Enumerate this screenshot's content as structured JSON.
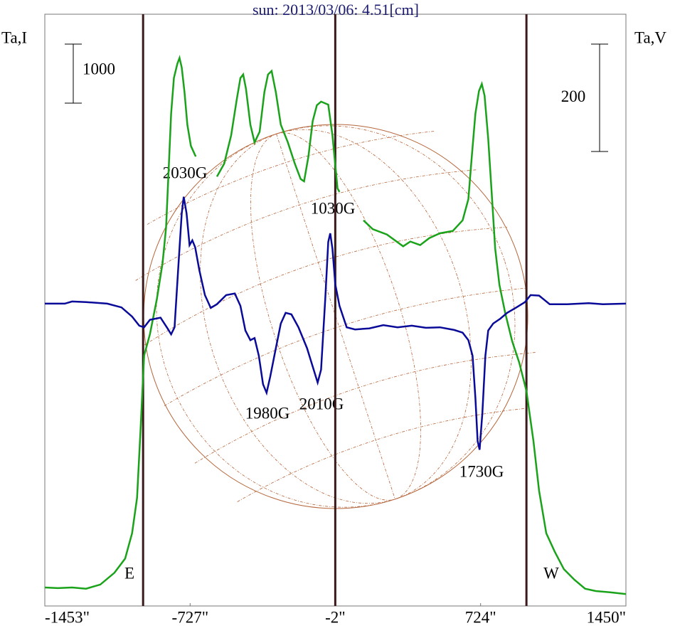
{
  "chart_data": {
    "type": "line",
    "title": "sun: 2013/03/06: 4.51[cm]",
    "xlim": [
      -1453,
      1450
    ],
    "xticks": [
      {
        "value": -1453,
        "label": "-1453\""
      },
      {
        "value": -727,
        "label": "-727\""
      },
      {
        "value": -2,
        "label": "-2\""
      },
      {
        "value": 724,
        "label": "724\""
      },
      {
        "value": 1450,
        "label": "1450\""
      }
    ],
    "ylim": [
      -313,
      9711
    ],
    "y2lim": [
      -563,
      539
    ],
    "vlines": [
      -962,
      -2,
      953
    ],
    "vline_color": "#3a1a1a",
    "scale_bars": [
      {
        "value": 1000,
        "axis": "y"
      },
      {
        "value": 200,
        "axis": "y2"
      }
    ],
    "annotations": [
      "2030G",
      "1030G",
      "1980G",
      "2010G",
      "1730G",
      "E",
      "W"
    ],
    "series": [
      {
        "name": "Ta,I",
        "color": "#1aa31a",
        "axis": "y",
        "x": [
          -1453,
          -1388,
          -1317,
          -1247,
          -1176,
          -1105,
          -1052,
          -1017,
          -992,
          -974,
          -957,
          -928,
          -893,
          -865,
          -847,
          -833,
          -822,
          -808,
          -791,
          -780,
          -769,
          -755,
          -741,
          -723,
          -699,
          -640,
          -593,
          -557,
          -522,
          -494,
          -476,
          -462,
          -448,
          -426,
          -405,
          -380,
          -356,
          -338,
          -320,
          -299,
          -274,
          -239,
          -204,
          -175,
          -158,
          -136,
          -115,
          -94,
          -73,
          -37,
          -16,
          9,
          19,
          80,
          139,
          185,
          256,
          337,
          373,
          422,
          468,
          521,
          585,
          634,
          663,
          680,
          698,
          716,
          730,
          744,
          762,
          779,
          797,
          818,
          847,
          882,
          917,
          953,
          988,
          1016,
          1052,
          1094,
          1140,
          1193,
          1246,
          1299,
          1370,
          1450
        ],
        "values": [
          0,
          -10,
          0,
          -20,
          50,
          250,
          490,
          920,
          1520,
          2720,
          3930,
          4290,
          4890,
          5490,
          6100,
          7180,
          8030,
          8630,
          8870,
          8970,
          8810,
          8390,
          7840,
          7480,
          7300,
          null,
          6960,
          7180,
          7660,
          8270,
          8630,
          8690,
          8450,
          7840,
          7540,
          7720,
          8390,
          8690,
          8750,
          8390,
          7840,
          7540,
          7180,
          6920,
          6880,
          7300,
          7900,
          8170,
          8230,
          8180,
          7660,
          6760,
          6700,
          null,
          6220,
          6070,
          5980,
          5780,
          5860,
          5800,
          5920,
          6000,
          6040,
          6220,
          6580,
          7300,
          8030,
          8410,
          8530,
          8330,
          7600,
          6700,
          5740,
          5130,
          4650,
          4170,
          3810,
          3330,
          2480,
          1640,
          920,
          610,
          310,
          130,
          -20,
          -60,
          -80,
          -110
        ]
      },
      {
        "name": "Ta,V",
        "color": "#0a0a99",
        "axis": "y2",
        "x": [
          -1453,
          -1353,
          -1317,
          -1247,
          -1141,
          -1070,
          -1017,
          -981,
          -957,
          -928,
          -875,
          -840,
          -822,
          -805,
          -787,
          -769,
          -759,
          -745,
          -730,
          -716,
          -702,
          -681,
          -653,
          -624,
          -593,
          -547,
          -504,
          -476,
          -451,
          -426,
          -405,
          -384,
          -363,
          -345,
          -327,
          -299,
          -274,
          -250,
          -221,
          -186,
          -143,
          -115,
          -90,
          -73,
          -52,
          -37,
          -27,
          -16,
          -2,
          19,
          55,
          97,
          168,
          238,
          309,
          380,
          451,
          521,
          592,
          634,
          663,
          684,
          698,
          709,
          719,
          733,
          748,
          762,
          787,
          822,
          857,
          903,
          946,
          974,
          1016,
          1069,
          1158,
          1264,
          1335,
          1450
        ],
        "values": [
          0,
          0,
          4,
          3,
          0,
          -7,
          -24,
          -41,
          -44,
          -30,
          -26,
          -46,
          -57,
          -44,
          62,
          168,
          199,
          168,
          109,
          118,
          105,
          62,
          16,
          -8,
          -1,
          16,
          19,
          -4,
          -50,
          -68,
          -64,
          -97,
          -150,
          -166,
          -136,
          -83,
          -37,
          -17,
          -20,
          -44,
          -83,
          -117,
          -147,
          -123,
          9,
          115,
          131,
          102,
          36,
          -4,
          -44,
          -48,
          -46,
          -40,
          -44,
          -41,
          -45,
          -44,
          -49,
          -54,
          -68,
          -97,
          -176,
          -256,
          -272,
          -203,
          -97,
          -50,
          -37,
          -28,
          -17,
          -7,
          3,
          16,
          15,
          -1,
          -1,
          1,
          -1,
          0
        ]
      }
    ]
  }
}
